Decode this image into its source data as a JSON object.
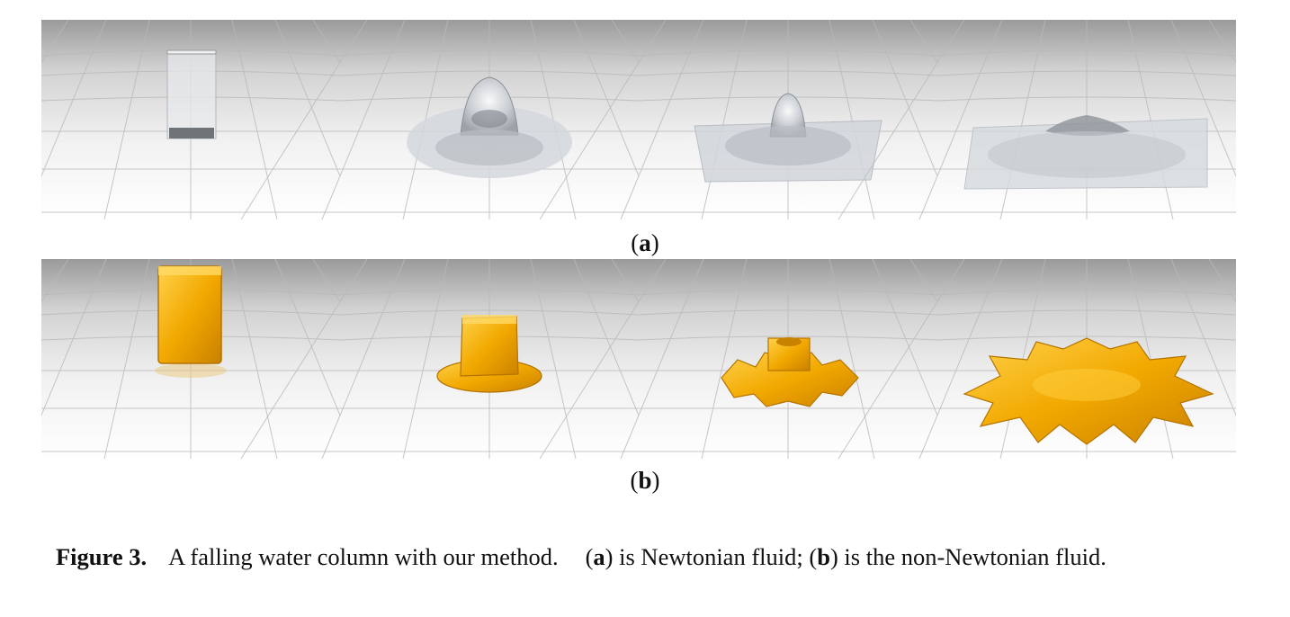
{
  "figure": {
    "panels": [
      {
        "label": "a",
        "frames": 4,
        "fluid_color": "#d9dde2"
      },
      {
        "label": "b",
        "frames": 4,
        "fluid_color": "#f2a900"
      }
    ],
    "caption": {
      "figure_label": "Figure 3.",
      "sentence": "A falling water column with our method.",
      "part_a_label": "a",
      "part_a_text": "is Newtonian fluid;",
      "part_b_label": "b",
      "part_b_text": "is the non-Newtonian fluid."
    }
  }
}
